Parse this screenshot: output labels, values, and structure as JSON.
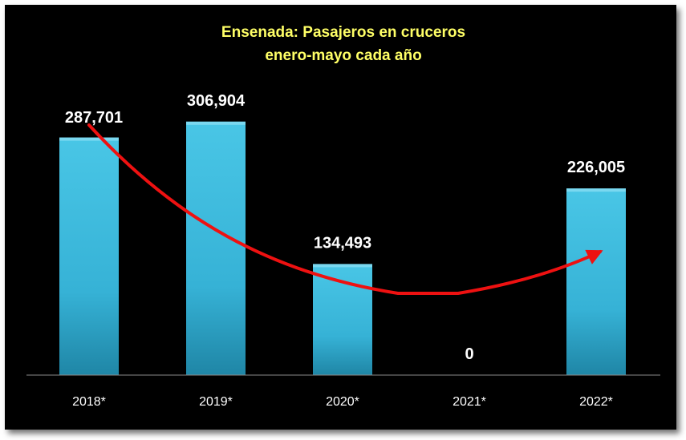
{
  "chart_data": {
    "type": "bar",
    "title": "Ensenada: Pasajeros en cruceros",
    "subtitle": "enero-mayo cada año",
    "categories": [
      "2018*",
      "2019*",
      "2020*",
      "2021*",
      "2022*"
    ],
    "values": [
      287701,
      306904,
      134493,
      0,
      226005
    ],
    "data_labels": [
      "287,701",
      "306,904",
      "134,493",
      "0",
      "226,005"
    ],
    "ylim": [
      0,
      330000
    ],
    "grid": false,
    "legend": "none",
    "trend_arrow": true,
    "colors": {
      "background": "#000000",
      "bar": "#3fbcdd",
      "bar_dark": "#1f89a8",
      "title": "#ffff66",
      "labels": "#ffffff",
      "trend": "#ee1111"
    }
  }
}
